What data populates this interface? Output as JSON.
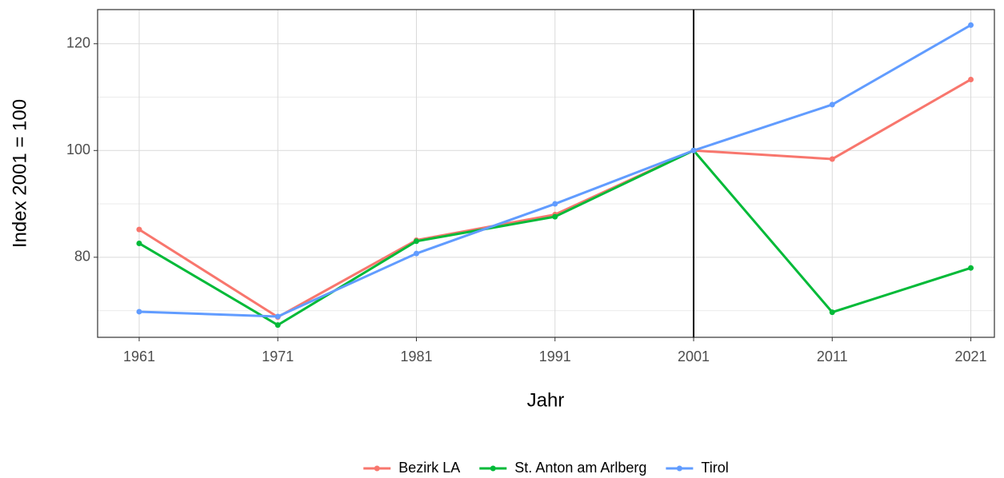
{
  "chart_data": {
    "type": "line",
    "x_label": "Jahr",
    "y_label": "Index 2001 = 100",
    "x": [
      1961,
      1971,
      1981,
      1991,
      2001,
      2011,
      2021
    ],
    "series": [
      {
        "name": "Bezirk LA",
        "color": "#F8766D",
        "values": [
          85.2,
          68.8,
          83.2,
          88,
          100,
          98.4,
          113.3
        ]
      },
      {
        "name": "St. Anton am Arlberg",
        "color": "#00BA38",
        "values": [
          82.6,
          67.3,
          83,
          87.6,
          100,
          69.7,
          78
        ]
      },
      {
        "name": "Tirol",
        "color": "#619CFF",
        "values": [
          69.8,
          68.9,
          80.7,
          90,
          100,
          108.6,
          123.5
        ]
      }
    ],
    "xlim": [
      1958,
      2022.7
    ],
    "ylim": [
      65,
      126.4
    ],
    "xticks": [
      1961,
      1971,
      1981,
      1991,
      2001,
      2011,
      2021
    ],
    "yticks": [
      80,
      100,
      120
    ],
    "y_minor_ticks": [
      70,
      90,
      110
    ],
    "vline": 2001,
    "grid": true,
    "legend": "bottom"
  }
}
